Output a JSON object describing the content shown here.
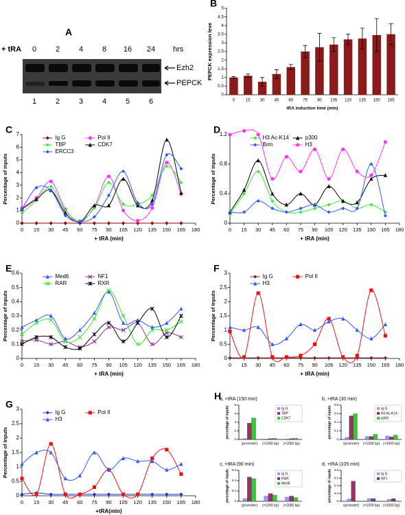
{
  "blot": {
    "panel": "A",
    "treatment": "+ tRA",
    "times": [
      "0",
      "2",
      "4",
      "8",
      "16",
      "24"
    ],
    "unit": "hrs",
    "bands": [
      "Ezh2",
      "PEPCK"
    ],
    "lanes": [
      "1",
      "2",
      "3",
      "4",
      "5",
      "6"
    ]
  },
  "h_panel": "H",
  "chart_data": [
    {
      "type": "bar",
      "panel": "B",
      "ylabel": "PEPCK expression leve",
      "xlabel": "tRA induction time (min)",
      "categories": [
        "0",
        "15",
        "30",
        "45",
        "60",
        "75",
        "90",
        "105",
        "120",
        "135",
        "150",
        "165"
      ],
      "values": [
        1,
        1.1,
        0.75,
        1.2,
        1.6,
        2.5,
        2.75,
        2.9,
        3.2,
        3.25,
        3.45,
        3.5
      ],
      "errors": [
        0.05,
        0.1,
        0.25,
        0.25,
        0.15,
        0.35,
        0.8,
        0.4,
        0.3,
        0.6,
        0.95,
        0.6
      ],
      "color": "#8b1a1a",
      "ylim": [
        0,
        5
      ],
      "yticks": [
        0,
        0.5,
        1,
        1.5,
        2,
        2.5,
        3,
        3.5,
        4,
        4.5,
        5
      ]
    },
    {
      "type": "line",
      "panel": "C",
      "ylabel": "Percentage of inputs",
      "xlabel": "+ tRA (min)",
      "x": [
        0,
        15,
        30,
        45,
        60,
        75,
        90,
        105,
        120,
        135,
        150,
        165
      ],
      "xlim": [
        0,
        180
      ],
      "xticks": [
        0,
        15,
        30,
        45,
        60,
        75,
        90,
        105,
        120,
        135,
        150,
        165,
        180
      ],
      "ylim": [
        0,
        7
      ],
      "yticks": [
        0,
        1,
        2,
        3,
        4,
        5,
        6,
        7
      ],
      "series": [
        {
          "name": "Ig G",
          "color": "#8b0000",
          "marker": "diamond",
          "values": [
            0,
            0,
            0,
            0,
            0,
            0,
            0,
            0,
            0,
            0,
            0,
            0
          ]
        },
        {
          "name": "Pol II",
          "color": "#ff33ff",
          "marker": "circle",
          "values": [
            1.2,
            2.0,
            3.3,
            1.1,
            0.1,
            1.3,
            3.7,
            1.0,
            0.2,
            1.2,
            4.8,
            2.3
          ]
        },
        {
          "name": "TBP",
          "color": "#33ee33",
          "marker": "diamond",
          "values": [
            0.8,
            1.8,
            2.9,
            1.0,
            0.2,
            1.2,
            3.2,
            1.5,
            1.5,
            2.2,
            4.5,
            3.2
          ]
        },
        {
          "name": "CDK7",
          "color": "#000000",
          "marker": "triangle",
          "values": [
            1.1,
            1.9,
            2.6,
            0.8,
            0.1,
            1.4,
            1.4,
            3.5,
            1.4,
            1.8,
            6.6,
            2.4
          ]
        },
        {
          "name": "ERCC3",
          "color": "#3355ff",
          "marker": "diamond",
          "values": [
            1.1,
            2.8,
            2.6,
            0.6,
            0.1,
            0.5,
            2.2,
            4.1,
            1.6,
            1.5,
            5.4,
            4.3
          ]
        }
      ]
    },
    {
      "type": "line",
      "panel": "D",
      "ylabel": "Percentage of inputs",
      "xlabel": "+ tRA (min)",
      "x": [
        0,
        15,
        30,
        45,
        60,
        75,
        90,
        105,
        120,
        135,
        150,
        165
      ],
      "xlim": [
        0,
        180
      ],
      "xticks": [
        0,
        15,
        30,
        45,
        60,
        75,
        90,
        105,
        120,
        135,
        150,
        165,
        180
      ],
      "ylim": [
        0,
        1.2
      ],
      "yticks": [
        0,
        0.4,
        0.8,
        1.2
      ],
      "series": [
        {
          "name": "H3 Ac-K14",
          "color": "#33ee33",
          "marker": "diamond",
          "values": [
            0.12,
            0.4,
            0.7,
            0.3,
            0.15,
            0.15,
            0.2,
            0.25,
            0.3,
            0.2,
            0.25,
            0.15
          ]
        },
        {
          "name": "p300",
          "color": "#000000",
          "marker": "triangle",
          "values": [
            0.15,
            0.45,
            0.85,
            0.4,
            0.25,
            0.4,
            0.25,
            0.5,
            0.3,
            0.28,
            0.6,
            0.65
          ]
        },
        {
          "name": "Brm",
          "color": "#3355ff",
          "marker": "diamond",
          "values": [
            0.15,
            0.15,
            0.3,
            0.2,
            0.15,
            0.2,
            0.25,
            0.15,
            0.2,
            0.2,
            0.8,
            0.1
          ]
        },
        {
          "name": "H3",
          "color": "#ff33ff",
          "marker": "circle",
          "values": [
            1.2,
            1.25,
            1.2,
            0.6,
            0.9,
            0.7,
            1.0,
            0.6,
            1.0,
            0.7,
            0.65,
            1.1
          ]
        }
      ]
    },
    {
      "type": "line",
      "panel": "E",
      "ylabel": "Percentage of inputs",
      "xlabel": "+ tRA (min)",
      "x": [
        0,
        15,
        30,
        45,
        60,
        75,
        90,
        105,
        120,
        135,
        150,
        165
      ],
      "xlim": [
        0,
        180
      ],
      "xticks": [
        0,
        15,
        30,
        45,
        60,
        75,
        90,
        105,
        120,
        135,
        150,
        165,
        180
      ],
      "ylim": [
        0,
        0.6
      ],
      "yticks": [
        0,
        0.1,
        0.2,
        0.3,
        0.4,
        0.5,
        0.6
      ],
      "series": [
        {
          "name": "Med6",
          "color": "#3355ff",
          "marker": "triangle",
          "values": [
            0.22,
            0.27,
            0.3,
            0.14,
            0.2,
            0.32,
            0.47,
            0.25,
            0.27,
            0.22,
            0.25,
            0.35
          ]
        },
        {
          "name": "NF1",
          "color": "#8b2f8b",
          "marker": "x",
          "values": [
            0.12,
            0.13,
            0.1,
            0.12,
            0.08,
            0.12,
            0.22,
            0.2,
            0.25,
            0.1,
            0.18,
            0.15
          ]
        },
        {
          "name": "RAR",
          "color": "#33ee33",
          "marker": "x",
          "values": [
            0.17,
            0.25,
            0.27,
            0.12,
            0.15,
            0.28,
            0.48,
            0.3,
            0.1,
            0.2,
            0.2,
            0.26
          ]
        },
        {
          "name": "RXR",
          "color": "#000000",
          "marker": "star",
          "values": [
            0.1,
            0.15,
            0.15,
            0.08,
            0.07,
            0.17,
            0.25,
            0.12,
            0.25,
            0.35,
            0.15,
            0.3
          ]
        }
      ]
    },
    {
      "type": "line",
      "panel": "F",
      "ylabel": "Percentage of Inputs",
      "xlabel": "+ tRA (min)",
      "x": [
        0,
        15,
        30,
        45,
        60,
        75,
        90,
        105,
        120,
        135,
        150,
        165
      ],
      "xlim": [
        0,
        180
      ],
      "xticks": [
        0,
        15,
        30,
        45,
        60,
        75,
        90,
        105,
        120,
        135,
        150,
        165,
        180
      ],
      "ylim": [
        0,
        3
      ],
      "yticks": [
        0,
        0.5,
        1,
        1.5,
        2,
        2.5,
        3
      ],
      "series": [
        {
          "name": "Ig G",
          "color": "#8b1a1a",
          "marker": "diamond",
          "values": [
            0.02,
            0.02,
            0.02,
            0.02,
            0.02,
            0.02,
            0.02,
            0.02,
            0.02,
            0.02,
            0.02,
            0.02
          ]
        },
        {
          "name": "Pol II",
          "color": "#ee1111",
          "marker": "square",
          "values": [
            0.95,
            0.05,
            2.3,
            0.05,
            0.05,
            0.1,
            0.5,
            1.4,
            0.05,
            0.1,
            2.4,
            0.8
          ]
        },
        {
          "name": "H3",
          "color": "#3355ff",
          "marker": "triangle",
          "values": [
            1.1,
            1.0,
            1.1,
            0.5,
            0.7,
            1.2,
            1.0,
            1.3,
            1.4,
            1.0,
            0.7,
            1.2
          ]
        }
      ]
    },
    {
      "type": "line",
      "panel": "G",
      "ylabel": "Percentage of Inputs",
      "xlabel": "+tRA(min)",
      "x": [
        0,
        15,
        30,
        45,
        60,
        75,
        90,
        105,
        120,
        135,
        150,
        165
      ],
      "xlim": [
        0,
        180
      ],
      "xticks": [
        0,
        15,
        30,
        45,
        60,
        75,
        90,
        105,
        120,
        135,
        150,
        165,
        180
      ],
      "ylim": [
        0,
        3
      ],
      "yticks": [
        0,
        0.5,
        1,
        1.5,
        2,
        2.5,
        3
      ],
      "series": [
        {
          "name": "Ig G",
          "color": "#1133cc",
          "marker": "diamond",
          "values": [
            0.05,
            0.1,
            0.05,
            0.05,
            0.05,
            0.05,
            0.05,
            0.05,
            0.05,
            0.05,
            0.05,
            0.05
          ]
        },
        {
          "name": "Pol II",
          "color": "#ee1111",
          "marker": "square",
          "values": [
            0.6,
            0.05,
            1.8,
            0.05,
            0.05,
            0.3,
            0.9,
            0.05,
            0.05,
            1.3,
            1.6,
            0.75
          ]
        },
        {
          "name": "H3",
          "color": "#3355ff",
          "marker": "triangle",
          "values": [
            1.1,
            1.5,
            1.5,
            0.6,
            0.7,
            1.5,
            0.9,
            1.3,
            1.2,
            1.2,
            0.9,
            1.1
          ]
        }
      ]
    },
    {
      "type": "grouped_bar",
      "title": "a, +tRA (150 min)",
      "ylabel": "percentage of inputs",
      "categories": [
        "(promoter)",
        "(+1000 bp)",
        "(+2000 bp)"
      ],
      "ylim": [
        0,
        8
      ],
      "yticks": [
        0,
        2,
        4,
        6,
        8
      ],
      "series": [
        {
          "name": "Ig G",
          "color": "#9999ff",
          "values": [
            0.2,
            0.1,
            0.1
          ]
        },
        {
          "name": "TBP",
          "color": "#993366",
          "values": [
            3.8,
            0.2,
            0.2
          ]
        },
        {
          "name": "CDK7",
          "color": "#33cc33",
          "values": [
            5,
            0.3,
            0.3
          ]
        }
      ]
    },
    {
      "type": "grouped_bar",
      "title": "b, +tRA (30 min)",
      "ylabel": "percentage of inputs",
      "categories": [
        "(promoter)",
        "(+1000 bp)",
        "(+2000 bp)"
      ],
      "ylim": [
        0,
        0.8
      ],
      "yticks": [
        0,
        0.2,
        0.4,
        0.6,
        0.8
      ],
      "series": [
        {
          "name": "Ig G",
          "color": "#9999ff",
          "values": [
            0.05,
            0.07,
            0.08
          ]
        },
        {
          "name": "H3 Ac-K14",
          "color": "#993366",
          "values": [
            0.55,
            0.07,
            0.06
          ]
        },
        {
          "name": "p300",
          "color": "#33cc33",
          "values": [
            0.6,
            0.12,
            0.1
          ]
        }
      ]
    },
    {
      "type": "grouped_bar",
      "title": "c, +tRA (90 min)",
      "ylabel": "percentage of inputs",
      "categories": [
        "(promoter)",
        "(+1000 bp)",
        "(+2000 bp)"
      ],
      "ylim": [
        0,
        0.6
      ],
      "yticks": [
        0,
        0.2,
        0.4,
        0.6
      ],
      "series": [
        {
          "name": "Ig G",
          "color": "#9999ff",
          "values": [
            0.05,
            0.1,
            0.08
          ]
        },
        {
          "name": "RAR",
          "color": "#993366",
          "values": [
            0.47,
            0.15,
            0.1
          ]
        },
        {
          "name": "Med6",
          "color": "#33cc33",
          "values": [
            0.44,
            0.12,
            0.07
          ]
        }
      ]
    },
    {
      "type": "grouped_bar",
      "title": "d, +tRA (105 min)",
      "ylabel": "percentage of inputs",
      "categories": [
        "(promoter)",
        "(+1000 bp)",
        "(+2000 bp)"
      ],
      "ylim": [
        0,
        0.8
      ],
      "yticks": [
        0,
        0.2,
        0.4,
        0.6,
        0.8
      ],
      "series": [
        {
          "name": "Ig G",
          "color": "#9999ff",
          "values": [
            0.06,
            0.07,
            0.05
          ]
        },
        {
          "name": "NF1",
          "color": "#993366",
          "values": [
            0.52,
            0.07,
            0.07
          ]
        }
      ]
    }
  ]
}
